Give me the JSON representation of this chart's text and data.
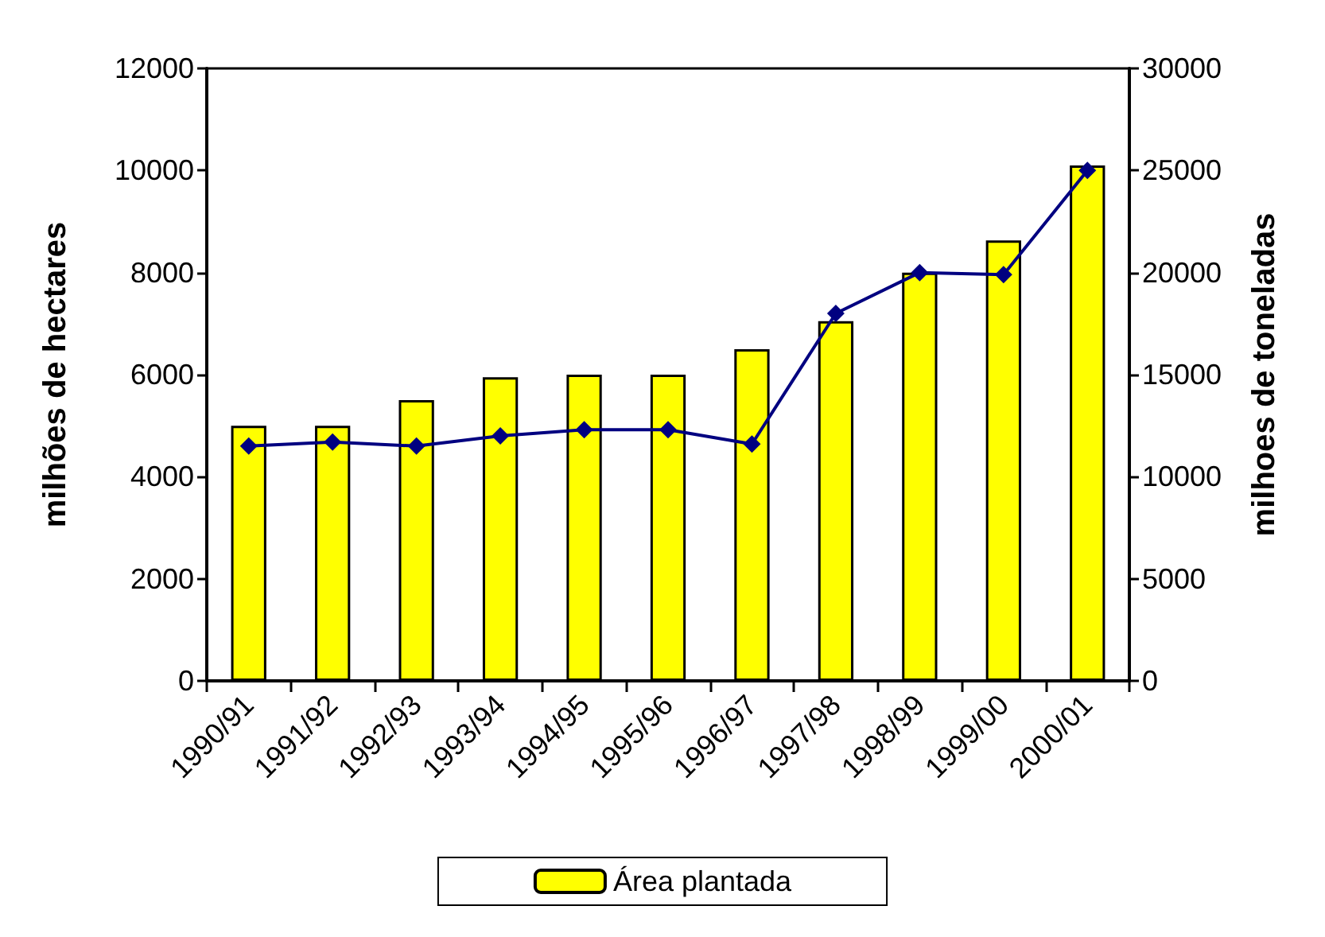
{
  "chart_data": {
    "type": "bar",
    "ylabel": "milhões de hectares",
    "y2label": "milhoes de toneladas",
    "categories": [
      "1990/91",
      "1991/92",
      "1992/93",
      "1993/94",
      "1994/95",
      "1995/96",
      "1996/97",
      "1997/98",
      "1998/99",
      "1999/00",
      "2000/01"
    ],
    "series": [
      {
        "name": "Área plantada",
        "color": "#ffff00",
        "values": [
          5000,
          5000,
          5500,
          5950,
          6000,
          6000,
          6500,
          7050,
          8000,
          8630,
          10100
        ]
      },
      {
        "type": "line",
        "axis": "y2",
        "color": "#000080",
        "values": [
          11500,
          11700,
          11500,
          12000,
          12300,
          12300,
          11600,
          18000,
          20000,
          19900,
          25000
        ]
      }
    ],
    "ylim": [
      0,
      12000
    ],
    "yticks": [
      0,
      2000,
      4000,
      6000,
      8000,
      10000,
      12000
    ],
    "y2lim": [
      0,
      30000
    ],
    "y2ticks": [
      0,
      5000,
      10000,
      15000,
      20000,
      25000,
      30000
    ],
    "grid": false,
    "legend": "bottom",
    "marker": "diamond",
    "line_style": "solid"
  }
}
